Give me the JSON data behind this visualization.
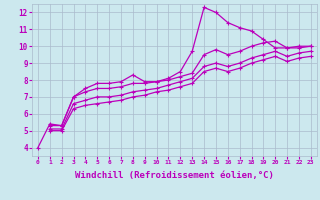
{
  "bg_color": "#cce8ee",
  "grid_color": "#aabbcc",
  "line_color": "#bb00bb",
  "xlabel": "Windchill (Refroidissement éolien,°C)",
  "xlabel_fontsize": 6.5,
  "ylabel_ticks": [
    4,
    5,
    6,
    7,
    8,
    9,
    10,
    11,
    12
  ],
  "xlabel_ticks": [
    0,
    1,
    2,
    3,
    4,
    5,
    6,
    7,
    8,
    9,
    10,
    11,
    12,
    13,
    14,
    15,
    16,
    17,
    18,
    19,
    20,
    21,
    22,
    23
  ],
  "xlim": [
    -0.5,
    23.5
  ],
  "ylim": [
    3.5,
    12.5
  ],
  "line1_x": [
    0,
    1,
    2,
    3,
    4,
    5,
    6,
    7,
    8,
    9,
    10,
    11,
    12,
    13,
    14,
    15,
    16,
    17,
    18,
    19,
    20,
    21,
    22,
    23
  ],
  "line1_y": [
    4.0,
    5.4,
    5.3,
    7.0,
    7.5,
    7.8,
    7.8,
    7.9,
    8.3,
    7.9,
    7.9,
    8.1,
    8.5,
    9.7,
    12.3,
    12.0,
    11.4,
    11.1,
    10.9,
    10.4,
    9.9,
    9.9,
    10.0,
    10.0
  ],
  "line2_x": [
    1,
    2,
    3,
    4,
    5,
    6,
    7,
    8,
    9,
    10,
    11,
    12,
    13,
    14,
    15,
    16,
    17,
    18,
    19,
    20,
    21,
    22,
    23
  ],
  "line2_y": [
    5.3,
    5.3,
    7.0,
    7.3,
    7.5,
    7.5,
    7.6,
    7.8,
    7.8,
    7.9,
    8.0,
    8.2,
    8.4,
    9.5,
    9.8,
    9.5,
    9.7,
    10.0,
    10.2,
    10.3,
    9.9,
    9.9,
    10.0
  ],
  "line3_x": [
    1,
    2,
    3,
    4,
    5,
    6,
    7,
    8,
    9,
    10,
    11,
    12,
    13,
    14,
    15,
    16,
    17,
    18,
    19,
    20,
    21,
    22,
    23
  ],
  "line3_y": [
    5.1,
    5.1,
    6.6,
    6.8,
    7.0,
    7.0,
    7.1,
    7.3,
    7.4,
    7.5,
    7.7,
    7.9,
    8.1,
    8.8,
    9.0,
    8.8,
    9.0,
    9.3,
    9.5,
    9.7,
    9.4,
    9.6,
    9.7
  ],
  "line4_x": [
    1,
    2,
    3,
    4,
    5,
    6,
    7,
    8,
    9,
    10,
    11,
    12,
    13,
    14,
    15,
    16,
    17,
    18,
    19,
    20,
    21,
    22,
    23
  ],
  "line4_y": [
    5.0,
    5.0,
    6.3,
    6.5,
    6.6,
    6.7,
    6.8,
    7.0,
    7.1,
    7.3,
    7.4,
    7.6,
    7.8,
    8.5,
    8.7,
    8.5,
    8.7,
    9.0,
    9.2,
    9.4,
    9.1,
    9.3,
    9.4
  ]
}
